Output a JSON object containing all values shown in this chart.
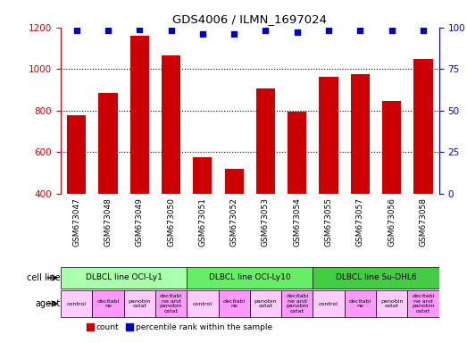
{
  "title": "GDS4006 / ILMN_1697024",
  "samples": [
    "GSM673047",
    "GSM673048",
    "GSM673049",
    "GSM673050",
    "GSM673051",
    "GSM673052",
    "GSM673053",
    "GSM673054",
    "GSM673055",
    "GSM673057",
    "GSM673056",
    "GSM673058"
  ],
  "counts": [
    775,
    885,
    1160,
    1065,
    575,
    520,
    905,
    795,
    960,
    975,
    845,
    1050
  ],
  "percentiles": [
    98,
    98,
    99,
    98,
    96,
    96,
    98,
    97,
    98,
    98,
    98,
    98
  ],
  "bar_color": "#cc0000",
  "dot_color": "#0000cc",
  "ylim_left": [
    400,
    1200
  ],
  "ylim_right": [
    0,
    100
  ],
  "yticks_left": [
    400,
    600,
    800,
    1000,
    1200
  ],
  "yticks_right": [
    0,
    25,
    50,
    75,
    100
  ],
  "cell_lines": [
    {
      "label": "DLBCL line OCI-Ly1",
      "color": "#99ff99",
      "start": 0,
      "end": 4
    },
    {
      "label": "DLBCL line OCI-Ly10",
      "color": "#66ff66",
      "start": 4,
      "end": 8
    },
    {
      "label": "DLBCL line Su-DHL6",
      "color": "#33cc33",
      "start": 8,
      "end": 12
    }
  ],
  "agents": [
    {
      "label": "control",
      "color": "#ffaaff",
      "start": 0,
      "end": 1
    },
    {
      "label": "decitabine",
      "color": "#ff88ff",
      "start": 1,
      "end": 2
    },
    {
      "label": "panobin ostat",
      "color": "#ffaaff",
      "start": 2,
      "end": 3
    },
    {
      "label": "decitabine and panobin ostat",
      "color": "#ff88ff",
      "start": 3,
      "end": 4
    },
    {
      "label": "control",
      "color": "#ffaaff",
      "start": 4,
      "end": 5
    },
    {
      "label": "decitabine",
      "color": "#ff88ff",
      "start": 5,
      "end": 6
    },
    {
      "label": "panobin ostat",
      "color": "#ffaaff",
      "start": 6,
      "end": 7
    },
    {
      "label": "decitabine and panobin ostat",
      "color": "#ff88ff",
      "start": 7,
      "end": 8
    },
    {
      "label": "control",
      "color": "#ffaaff",
      "start": 8,
      "end": 9
    },
    {
      "label": "decitabine",
      "color": "#ff88ff",
      "start": 9,
      "end": 10
    },
    {
      "label": "panobin ostat",
      "color": "#ffaaff",
      "start": 10,
      "end": 11
    },
    {
      "label": "decitabine and panobin ostat",
      "color": "#ff88ff",
      "start": 11,
      "end": 12
    }
  ],
  "cell_line_label": "cell line",
  "agent_label": "agent",
  "legend_count_color": "#cc0000",
  "legend_percentile_color": "#0000cc",
  "bg_color": "#ffffff",
  "grid_color": "#aaaaaa"
}
